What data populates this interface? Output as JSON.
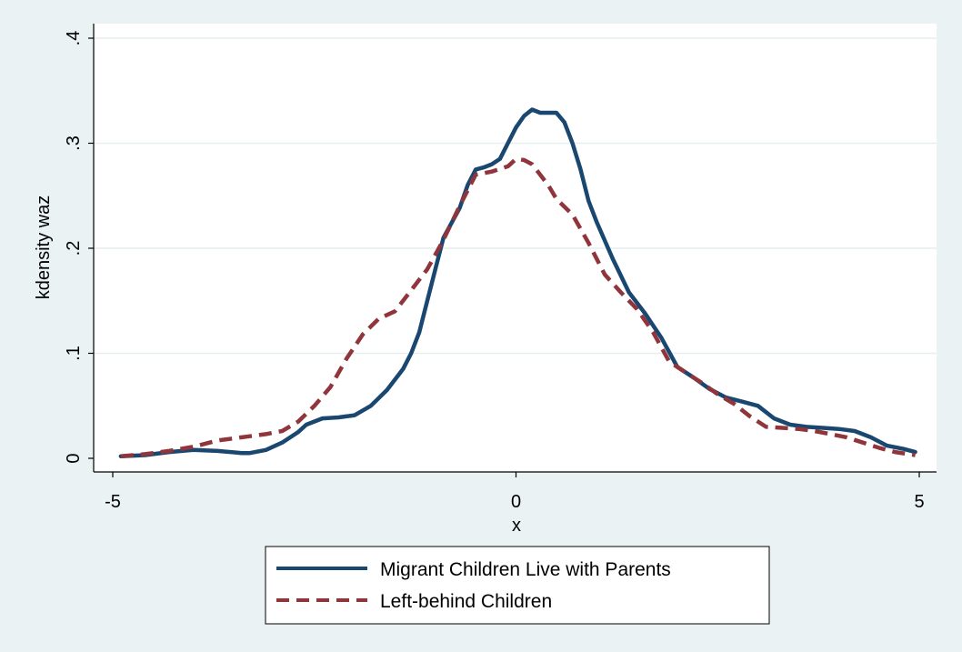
{
  "chart_data": {
    "type": "line",
    "title": "",
    "xlabel": "x",
    "ylabel": "kdensity waz",
    "xlim": [
      -5,
      5
    ],
    "ylim": [
      0,
      0.4
    ],
    "x_ticks": [
      -5,
      0,
      5
    ],
    "x_tick_labels": [
      "-5",
      "0",
      "5"
    ],
    "y_ticks": [
      0,
      0.1,
      0.2,
      0.3,
      0.4
    ],
    "y_tick_labels": [
      "0",
      ".1",
      ".2",
      ".3",
      ".4"
    ],
    "grid": "horizontal",
    "legend_position": "bottom",
    "series": [
      {
        "name": "Migrant Children Live with Parents",
        "color": "#1A476F",
        "style": "solid",
        "x": [
          -4.9,
          -4.6,
          -4.3,
          -4.0,
          -3.7,
          -3.4,
          -3.3,
          -3.1,
          -2.9,
          -2.7,
          -2.6,
          -2.4,
          -2.2,
          -2.0,
          -1.8,
          -1.6,
          -1.4,
          -1.3,
          -1.2,
          -1.1,
          -1.0,
          -0.9,
          -0.7,
          -0.6,
          -0.5,
          -0.4,
          -0.3,
          -0.2,
          -0.1,
          0.0,
          0.1,
          0.2,
          0.3,
          0.4,
          0.5,
          0.6,
          0.7,
          0.8,
          0.9,
          1.0,
          1.2,
          1.4,
          1.6,
          1.8,
          2.0,
          2.2,
          2.4,
          2.6,
          2.8,
          3.0,
          3.2,
          3.4,
          3.6,
          3.8,
          4.0,
          4.2,
          4.4,
          4.6,
          4.8,
          4.95
        ],
        "y": [
          0.002,
          0.003,
          0.006,
          0.008,
          0.007,
          0.005,
          0.005,
          0.008,
          0.015,
          0.025,
          0.032,
          0.038,
          0.039,
          0.041,
          0.05,
          0.065,
          0.085,
          0.1,
          0.12,
          0.15,
          0.18,
          0.21,
          0.238,
          0.26,
          0.275,
          0.277,
          0.28,
          0.285,
          0.3,
          0.315,
          0.326,
          0.332,
          0.329,
          0.329,
          0.329,
          0.32,
          0.3,
          0.275,
          0.245,
          0.225,
          0.19,
          0.158,
          0.138,
          0.115,
          0.087,
          0.077,
          0.066,
          0.058,
          0.054,
          0.05,
          0.038,
          0.032,
          0.03,
          0.029,
          0.028,
          0.026,
          0.02,
          0.012,
          0.009,
          0.006
        ]
      },
      {
        "name": "Left-behind Children",
        "color": "#90353B",
        "style": "dashed",
        "x": [
          -4.9,
          -4.6,
          -4.3,
          -4.0,
          -3.7,
          -3.4,
          -3.1,
          -2.9,
          -2.7,
          -2.5,
          -2.3,
          -2.1,
          -1.9,
          -1.7,
          -1.5,
          -1.3,
          -1.1,
          -0.9,
          -0.7,
          -0.5,
          -0.3,
          -0.1,
          0.0,
          0.1,
          0.2,
          0.3,
          0.4,
          0.5,
          0.7,
          0.9,
          1.1,
          1.3,
          1.5,
          1.7,
          1.9,
          2.1,
          2.3,
          2.5,
          2.7,
          2.9,
          3.1,
          3.3,
          3.5,
          3.7,
          3.9,
          4.1,
          4.3,
          4.5,
          4.7,
          4.95
        ],
        "y": [
          0.002,
          0.004,
          0.007,
          0.011,
          0.017,
          0.02,
          0.023,
          0.026,
          0.035,
          0.05,
          0.068,
          0.095,
          0.118,
          0.133,
          0.14,
          0.16,
          0.18,
          0.208,
          0.24,
          0.27,
          0.273,
          0.278,
          0.285,
          0.284,
          0.28,
          0.27,
          0.26,
          0.247,
          0.232,
          0.205,
          0.175,
          0.158,
          0.142,
          0.12,
          0.092,
          0.082,
          0.072,
          0.061,
          0.052,
          0.04,
          0.03,
          0.029,
          0.028,
          0.026,
          0.023,
          0.02,
          0.015,
          0.01,
          0.006,
          0.003
        ]
      }
    ]
  }
}
